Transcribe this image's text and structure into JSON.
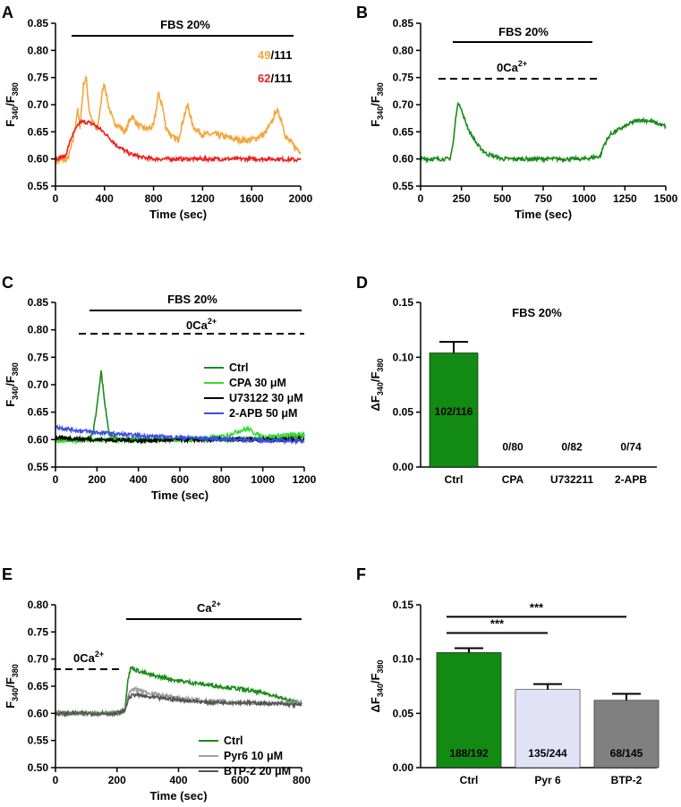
{
  "panels": {
    "A": {
      "letter": "A",
      "title": "FBS 20%",
      "counts": [
        {
          "num": "49",
          "den": "/111",
          "color": "#F4A63C"
        },
        {
          "num": "62",
          "den": "/111",
          "color": "#EE2020"
        }
      ]
    },
    "B": {
      "letter": "B",
      "title": "FBS 20%",
      "zero_ca": "0Ca"
    },
    "C": {
      "letter": "C",
      "title": "FBS 20%",
      "zero_ca": "0Ca",
      "legend": [
        {
          "label": "Ctrl",
          "color": "#1A8C1A"
        },
        {
          "label": "CPA 30 μM",
          "color": "#33DD33"
        },
        {
          "label": "U73122 30 μM",
          "color": "#000000"
        },
        {
          "label": "2-APB 50 μM",
          "color": "#3A4FE0"
        }
      ]
    },
    "D": {
      "letter": "D",
      "title": "FBS 20%"
    },
    "E": {
      "letter": "E",
      "zero_ca": "0Ca",
      "ca": "Ca",
      "legend": [
        {
          "label": "Ctrl",
          "color": "#1A8C1A"
        },
        {
          "label": "Pyr6 10 μM",
          "color": "#A0A0A0"
        },
        {
          "label": "BTP-2 20 μM",
          "color": "#555555"
        }
      ]
    },
    "F": {
      "letter": "F",
      "sig": "***"
    }
  },
  "chart_data": [
    {
      "id": "A",
      "type": "line",
      "title": "FBS 20%",
      "xlabel": "Time (sec)",
      "ylabel": "F340/F380",
      "xlim": [
        0,
        2000
      ],
      "ylim": [
        0.55,
        0.85
      ],
      "xticks": [
        0,
        400,
        800,
        1200,
        1600,
        2000
      ],
      "yticks": [
        0.55,
        0.6,
        0.65,
        0.7,
        0.75,
        0.8,
        0.85
      ],
      "series": [
        {
          "name": "49/111",
          "color": "#F4A63C",
          "x": [
            0,
            100,
            140,
            180,
            200,
            230,
            250,
            275,
            300,
            340,
            380,
            400,
            430,
            470,
            520,
            570,
            620,
            680,
            750,
            800,
            840,
            870,
            900,
            950,
            1000,
            1050,
            1080,
            1120,
            1200,
            1300,
            1400,
            1500,
            1600,
            1700,
            1760,
            1800,
            1840,
            1880,
            1920,
            1960,
            2000
          ],
          "y": [
            0.595,
            0.6,
            0.63,
            0.69,
            0.66,
            0.74,
            0.75,
            0.69,
            0.67,
            0.65,
            0.72,
            0.74,
            0.7,
            0.67,
            0.66,
            0.65,
            0.68,
            0.66,
            0.655,
            0.66,
            0.72,
            0.7,
            0.66,
            0.64,
            0.635,
            0.68,
            0.7,
            0.66,
            0.645,
            0.645,
            0.64,
            0.635,
            0.635,
            0.645,
            0.665,
            0.69,
            0.675,
            0.64,
            0.63,
            0.62,
            0.615
          ]
        },
        {
          "name": "62/111",
          "color": "#EE2020",
          "x": [
            0,
            80,
            130,
            200,
            260,
            320,
            400,
            500,
            600,
            700,
            800,
            1000,
            1200,
            1400,
            1600,
            1800,
            2000
          ],
          "y": [
            0.6,
            0.605,
            0.64,
            0.668,
            0.668,
            0.663,
            0.648,
            0.625,
            0.61,
            0.603,
            0.6,
            0.6,
            0.6,
            0.6,
            0.6,
            0.6,
            0.598
          ]
        }
      ]
    },
    {
      "id": "B",
      "type": "line",
      "title": "FBS 20%",
      "xlabel": "Time (sec)",
      "ylabel": "F340/F380",
      "xlim": [
        0,
        1500
      ],
      "ylim": [
        0.55,
        0.85
      ],
      "xticks": [
        0,
        250,
        500,
        750,
        1000,
        1250,
        1500
      ],
      "yticks": [
        0.55,
        0.6,
        0.65,
        0.7,
        0.75,
        0.8,
        0.85
      ],
      "bars": {
        "fbs": [
          200,
          1050
        ],
        "zero_ca": [
          120,
          1080
        ]
      },
      "series": [
        {
          "name": "trace",
          "color": "#1A8C1A",
          "x": [
            0,
            180,
            200,
            220,
            235,
            260,
            300,
            350,
            400,
            450,
            500,
            600,
            800,
            1000,
            1100,
            1120,
            1160,
            1200,
            1250,
            1300,
            1350,
            1400,
            1450,
            1500
          ],
          "y": [
            0.6,
            0.6,
            0.63,
            0.69,
            0.705,
            0.68,
            0.65,
            0.625,
            0.61,
            0.605,
            0.6,
            0.6,
            0.6,
            0.6,
            0.605,
            0.625,
            0.645,
            0.652,
            0.66,
            0.668,
            0.672,
            0.67,
            0.665,
            0.66
          ]
        }
      ]
    },
    {
      "id": "C",
      "type": "line",
      "title": "FBS 20%",
      "xlabel": "Time (sec)",
      "ylabel": "F340/F380",
      "xlim": [
        0,
        1200
      ],
      "ylim": [
        0.55,
        0.85
      ],
      "xticks": [
        0,
        200,
        400,
        600,
        800,
        1000,
        1200
      ],
      "yticks": [
        0.55,
        0.6,
        0.65,
        0.7,
        0.75,
        0.8,
        0.85
      ],
      "series": [
        {
          "name": "Ctrl",
          "color": "#1A8C1A",
          "x": [
            0,
            150,
            180,
            200,
            220,
            240,
            260,
            300,
            400,
            600,
            800,
            1000,
            1200
          ],
          "y": [
            0.6,
            0.6,
            0.61,
            0.66,
            0.725,
            0.66,
            0.61,
            0.6,
            0.6,
            0.6,
            0.6,
            0.6,
            0.605
          ]
        },
        {
          "name": "CPA 30 μM",
          "color": "#33DD33",
          "x": [
            0,
            200,
            400,
            600,
            800,
            880,
            930,
            960,
            1000,
            1100,
            1200
          ],
          "y": [
            0.598,
            0.6,
            0.598,
            0.6,
            0.605,
            0.615,
            0.62,
            0.612,
            0.605,
            0.608,
            0.61
          ]
        },
        {
          "name": "U73122 30 μM",
          "color": "#000000",
          "x": [
            0,
            200,
            400,
            600,
            800,
            1000,
            1200
          ],
          "y": [
            0.603,
            0.6,
            0.598,
            0.6,
            0.6,
            0.6,
            0.6
          ]
        },
        {
          "name": "2-APB 50 μM",
          "color": "#3A4FE0",
          "x": [
            0,
            100,
            200,
            300,
            400,
            600,
            800,
            1000,
            1200
          ],
          "y": [
            0.623,
            0.617,
            0.613,
            0.61,
            0.607,
            0.604,
            0.601,
            0.599,
            0.597
          ]
        }
      ]
    },
    {
      "id": "D",
      "type": "bar",
      "title": "FBS 20%",
      "ylabel": "ΔF340/F380",
      "ylim": [
        0,
        0.15
      ],
      "yticks": [
        0.0,
        0.05,
        0.1,
        0.15
      ],
      "categories": [
        "Ctrl",
        "CPA",
        "U732211",
        "2-APB"
      ],
      "values": [
        0.104,
        0,
        0,
        0
      ],
      "errors": [
        0.01,
        0,
        0,
        0
      ],
      "labels": [
        "102/116",
        "0/80",
        "0/82",
        "0/74"
      ],
      "colors": [
        "#138A13",
        "#ffffff",
        "#ffffff",
        "#ffffff"
      ]
    },
    {
      "id": "E",
      "type": "line",
      "xlabel": "Time (sec)",
      "ylabel": "F340/F380",
      "xlim": [
        0,
        800
      ],
      "ylim": [
        0.5,
        0.8
      ],
      "xticks": [
        0,
        200,
        400,
        600,
        800
      ],
      "yticks": [
        0.5,
        0.55,
        0.6,
        0.65,
        0.7,
        0.75,
        0.8
      ],
      "bars": {
        "zero_ca": [
          0,
          210
        ],
        "ca": [
          230,
          800
        ]
      },
      "series": [
        {
          "name": "Ctrl",
          "color": "#1A8C1A",
          "x": [
            0,
            100,
            200,
            225,
            235,
            245,
            260,
            300,
            400,
            500,
            600,
            700,
            750,
            800
          ],
          "y": [
            0.6,
            0.6,
            0.6,
            0.605,
            0.66,
            0.685,
            0.68,
            0.672,
            0.66,
            0.652,
            0.645,
            0.635,
            0.625,
            0.618
          ]
        },
        {
          "name": "Pyr6 10 μM",
          "color": "#A0A0A0",
          "x": [
            0,
            200,
            225,
            240,
            260,
            300,
            400,
            500,
            600,
            700,
            800
          ],
          "y": [
            0.6,
            0.6,
            0.605,
            0.64,
            0.645,
            0.638,
            0.628,
            0.622,
            0.62,
            0.618,
            0.62
          ]
        },
        {
          "name": "BTP-2 20 μM",
          "color": "#555555",
          "x": [
            0,
            200,
            225,
            240,
            260,
            300,
            400,
            500,
            600,
            700,
            800
          ],
          "y": [
            0.6,
            0.6,
            0.605,
            0.63,
            0.635,
            0.63,
            0.625,
            0.62,
            0.62,
            0.618,
            0.615
          ]
        }
      ]
    },
    {
      "id": "F",
      "type": "bar",
      "ylabel": "ΔF340/F380",
      "ylim": [
        0,
        0.15
      ],
      "yticks": [
        0.0,
        0.05,
        0.1,
        0.15
      ],
      "categories": [
        "Ctrl",
        "Pyr 6",
        "BTP-2"
      ],
      "values": [
        0.106,
        0.072,
        0.062
      ],
      "errors": [
        0.004,
        0.005,
        0.006
      ],
      "labels": [
        "188/192",
        "135/244",
        "68/145"
      ],
      "colors": [
        "#138A13",
        "#E2E2F6",
        "#808080"
      ],
      "significance": [
        {
          "from": 0,
          "to": 1,
          "label": "***"
        },
        {
          "from": 0,
          "to": 2,
          "label": "***"
        }
      ]
    }
  ]
}
